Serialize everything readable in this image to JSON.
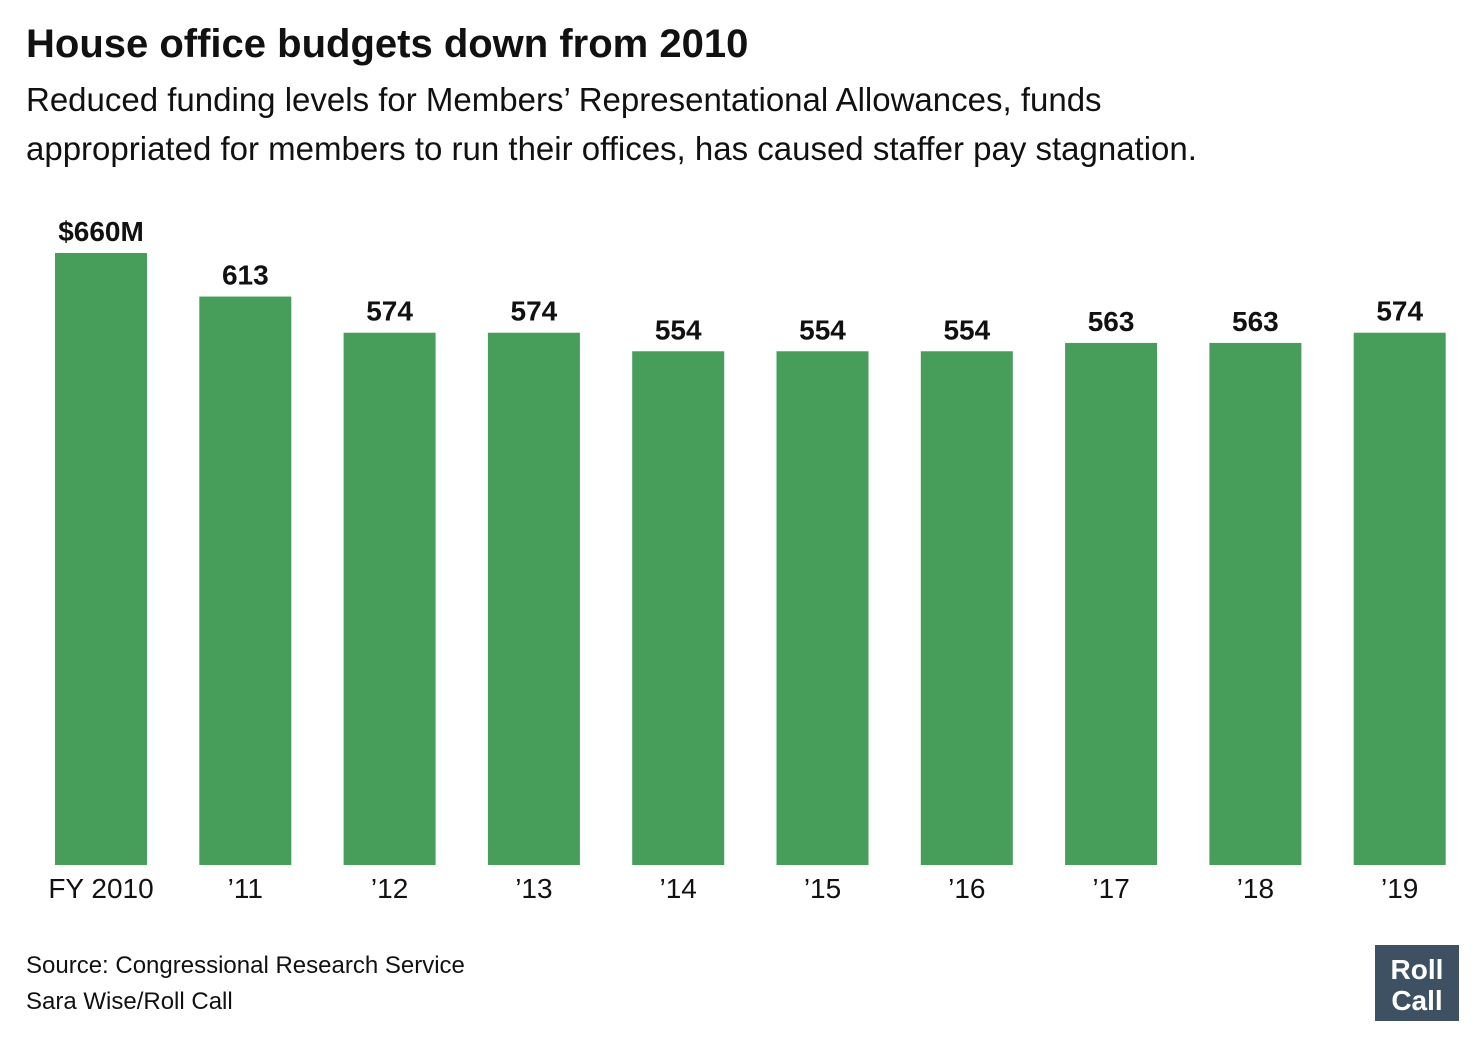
{
  "chart_data": {
    "type": "bar",
    "title": "House office budgets down from 2010",
    "subtitle": [
      "Reduced funding levels for Members’ Representational Allowances, funds",
      "appropriated for members to run their offices, has caused staffer pay stagnation."
    ],
    "categories": [
      "FY 2010",
      "’11",
      "’12",
      "’13",
      "’14",
      "’15",
      "’16",
      "’17",
      "’18",
      "’19"
    ],
    "values": [
      660,
      613,
      574,
      574,
      554,
      554,
      554,
      563,
      563,
      574
    ],
    "value_labels": [
      "$660M",
      "613",
      "574",
      "574",
      "554",
      "554",
      "554",
      "563",
      "563",
      "574"
    ],
    "color": "#469e5a",
    "source": [
      "Source: Congressional Research Service",
      "Sara Wise/Roll Call"
    ],
    "logo": [
      "Roll",
      "Call"
    ]
  }
}
